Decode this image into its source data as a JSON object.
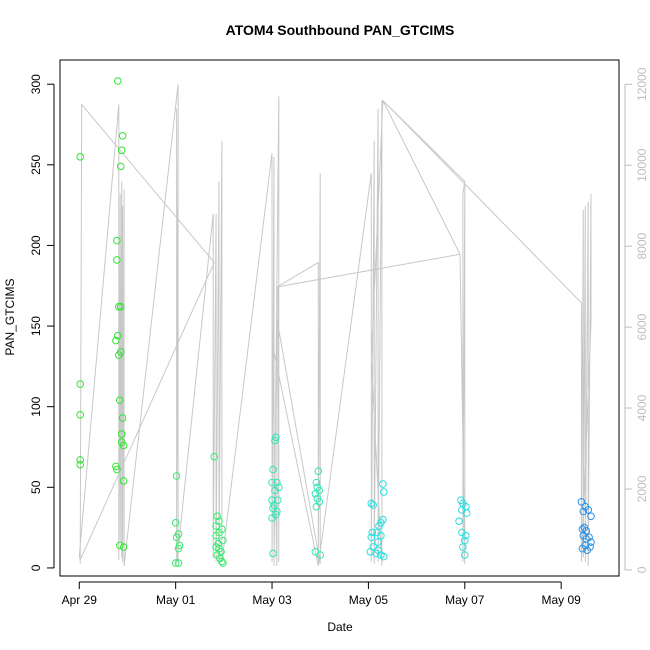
{
  "chart_data": {
    "type": "scatter",
    "title": "ATOM4 Southbound PAN_GTCIMS",
    "xlabel": "Date",
    "ylabel": "PAN_GTCIMS",
    "x_ticks": [
      "Apr 29",
      "May 01",
      "May 03",
      "May 05",
      "May 07",
      "May 09"
    ],
    "x_tick_days": [
      0,
      2,
      4,
      6,
      8,
      10
    ],
    "xlim": [
      -0.4,
      11.2
    ],
    "ylim": [
      -5,
      315
    ],
    "y_ticks": [
      0,
      50,
      100,
      150,
      200,
      250,
      300
    ],
    "y2lim": [
      -150,
      12600
    ],
    "y2_ticks": [
      0,
      2000,
      4000,
      6000,
      8000,
      10000,
      12000
    ],
    "grid": false,
    "colors": {
      "axis": "#000000",
      "right_axis": "#bdbdbd",
      "line": "#c8c8c8"
    },
    "series": [
      {
        "color": "#2ee62e",
        "points": [
          [
            0.02,
            255
          ],
          [
            0.02,
            114
          ],
          [
            0.02,
            95
          ],
          [
            0.02,
            67
          ],
          [
            0.02,
            64
          ],
          [
            0.8,
            302
          ],
          [
            0.78,
            203
          ],
          [
            0.78,
            191
          ],
          [
            0.82,
            162
          ],
          [
            0.86,
            162
          ],
          [
            0.8,
            144
          ],
          [
            0.76,
            141
          ],
          [
            0.82,
            132
          ],
          [
            0.86,
            134
          ],
          [
            0.84,
            104
          ],
          [
            0.9,
            93
          ],
          [
            0.88,
            83
          ],
          [
            0.88,
            78
          ],
          [
            0.92,
            76
          ],
          [
            0.76,
            63
          ],
          [
            0.78,
            61
          ],
          [
            0.92,
            54
          ],
          [
            0.84,
            14
          ],
          [
            0.92,
            13
          ],
          [
            0.9,
            268
          ],
          [
            0.88,
            259
          ],
          [
            0.86,
            249
          ]
        ]
      },
      {
        "color": "#36ea6e",
        "points": [
          [
            2.02,
            57
          ],
          [
            2.0,
            28
          ],
          [
            2.06,
            21
          ],
          [
            2.02,
            19
          ],
          [
            2.08,
            14
          ],
          [
            2.06,
            12
          ],
          [
            2.0,
            3
          ],
          [
            2.06,
            3
          ],
          [
            2.8,
            69
          ],
          [
            2.86,
            32
          ],
          [
            2.9,
            29
          ],
          [
            2.84,
            26
          ],
          [
            2.96,
            24
          ],
          [
            2.9,
            22
          ],
          [
            2.84,
            20
          ],
          [
            2.98,
            17
          ],
          [
            2.88,
            15
          ],
          [
            2.84,
            13
          ],
          [
            2.9,
            12
          ],
          [
            2.94,
            10
          ],
          [
            2.86,
            8
          ],
          [
            2.92,
            6
          ],
          [
            2.96,
            4
          ],
          [
            2.98,
            3
          ]
        ]
      },
      {
        "color": "#2ee8b8",
        "points": [
          [
            4.08,
            81
          ],
          [
            4.06,
            79
          ],
          [
            4.02,
            61
          ],
          [
            4.0,
            53
          ],
          [
            4.1,
            53
          ],
          [
            4.14,
            50
          ],
          [
            4.06,
            48
          ],
          [
            4.0,
            42
          ],
          [
            4.12,
            42
          ],
          [
            4.04,
            39
          ],
          [
            4.02,
            37
          ],
          [
            4.1,
            35
          ],
          [
            4.08,
            33
          ],
          [
            4.0,
            31
          ],
          [
            4.02,
            9
          ],
          [
            4.96,
            60
          ],
          [
            4.92,
            53
          ],
          [
            4.94,
            50
          ],
          [
            4.98,
            48
          ],
          [
            4.9,
            46
          ],
          [
            4.94,
            43
          ],
          [
            4.98,
            41
          ],
          [
            4.92,
            38
          ],
          [
            4.9,
            10
          ],
          [
            5.0,
            8
          ]
        ]
      },
      {
        "color": "#26e0e0",
        "points": [
          [
            6.3,
            52
          ],
          [
            6.32,
            47
          ],
          [
            6.06,
            40
          ],
          [
            6.1,
            39
          ],
          [
            6.3,
            30
          ],
          [
            6.26,
            28
          ],
          [
            6.22,
            26
          ],
          [
            6.08,
            22
          ],
          [
            6.18,
            22
          ],
          [
            6.26,
            20
          ],
          [
            6.06,
            19
          ],
          [
            6.2,
            16
          ],
          [
            6.1,
            13
          ],
          [
            6.2,
            11
          ],
          [
            6.04,
            10
          ],
          [
            6.16,
            9
          ],
          [
            6.26,
            8
          ],
          [
            6.32,
            7
          ],
          [
            7.92,
            42
          ],
          [
            7.96,
            40
          ],
          [
            8.02,
            38
          ],
          [
            7.94,
            36
          ],
          [
            8.04,
            34
          ],
          [
            7.88,
            29
          ],
          [
            7.94,
            22
          ],
          [
            8.02,
            20
          ],
          [
            8.0,
            17
          ],
          [
            7.96,
            13
          ],
          [
            8.0,
            8
          ]
        ]
      },
      {
        "color": "#2a8fe6",
        "points": [
          [
            10.42,
            41
          ],
          [
            10.5,
            38
          ],
          [
            10.46,
            35
          ],
          [
            10.56,
            36
          ],
          [
            10.62,
            32
          ],
          [
            10.48,
            25
          ],
          [
            10.44,
            24
          ],
          [
            10.52,
            23
          ],
          [
            10.46,
            20
          ],
          [
            10.58,
            19
          ],
          [
            10.52,
            18
          ],
          [
            10.62,
            16
          ],
          [
            10.5,
            14
          ],
          [
            10.6,
            13
          ],
          [
            10.44,
            12
          ],
          [
            10.54,
            11
          ]
        ]
      }
    ]
  }
}
